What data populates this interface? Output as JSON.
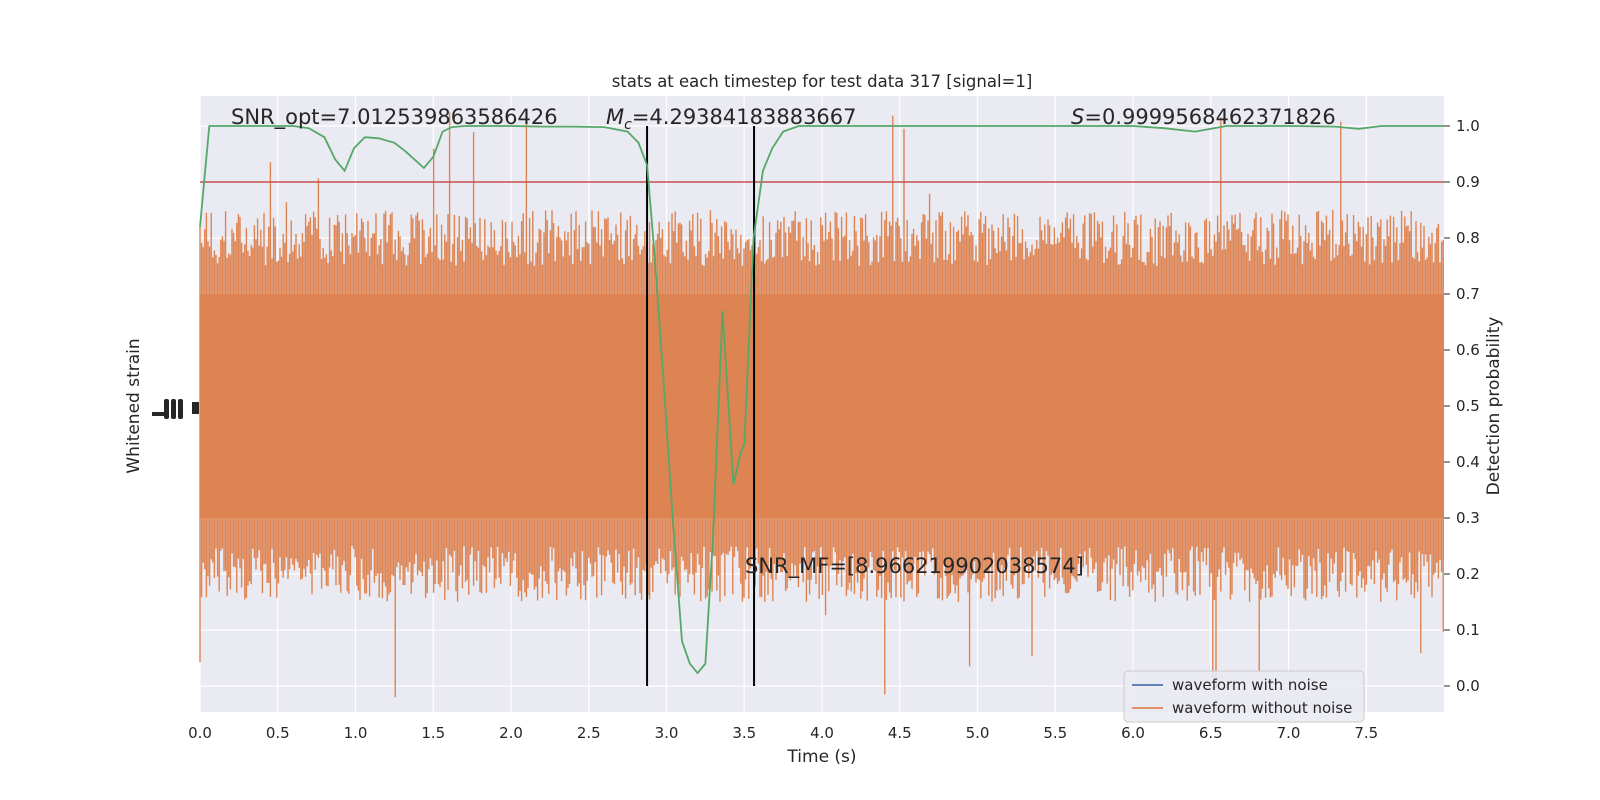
{
  "chart_data": {
    "type": "line",
    "title": "stats at each timestep for test data 317 [signal=1]",
    "xlabel": "Time (s)",
    "ylabel_left": "Whitened strain",
    "ylabel_right": "Detection probability",
    "xlim": [
      0.0,
      8.0
    ],
    "ylim_right": [
      -0.05,
      1.05
    ],
    "x_ticks": [
      "0.0",
      "0.5",
      "1.0",
      "1.5",
      "2.0",
      "2.5",
      "3.0",
      "3.5",
      "4.0",
      "4.5",
      "5.0",
      "5.5",
      "6.0",
      "6.5",
      "7.0",
      "7.5"
    ],
    "y_right_ticks": [
      "0.0",
      "0.1",
      "0.2",
      "0.3",
      "0.4",
      "0.5",
      "0.6",
      "0.7",
      "0.8",
      "0.9",
      "1.0"
    ],
    "grid": true,
    "legend": {
      "placement": "lower-right",
      "entries": [
        {
          "label": "waveform with noise",
          "color": "#4c72b0"
        },
        {
          "label": "waveform without noise",
          "color": "#dd8452"
        }
      ]
    },
    "annotations": {
      "snr_opt": "SNR_opt=7.012539863586426",
      "mc_symbol": "M",
      "mc_sub": "c",
      "mc_value": "=4.29384183883667",
      "s_symbol": "S",
      "s_value": "=0.9999568462371826",
      "snr_mf": "SNR_MF=[8.966219902038574]"
    },
    "threshold": {
      "value": 0.9,
      "color": "#c44e52"
    },
    "vlines": [
      2.875,
      3.563
    ],
    "strain_band": {
      "color": "#dd8452",
      "core_low": 0.3,
      "core_high": 0.7,
      "bulk_low": 0.22,
      "bulk_high": 0.78
    },
    "detection_probability": {
      "color": "#55a868",
      "x": [
        0.0,
        0.06,
        0.12,
        0.2,
        0.3,
        0.4,
        0.5,
        0.6,
        0.7,
        0.8,
        0.87,
        0.93,
        0.99,
        1.06,
        1.15,
        1.25,
        1.32,
        1.38,
        1.44,
        1.5,
        1.56,
        1.62,
        1.7,
        1.8,
        2.0,
        2.2,
        2.4,
        2.6,
        2.75,
        2.82,
        2.875,
        2.92,
        2.98,
        3.04,
        3.1,
        3.15,
        3.2,
        3.25,
        3.3,
        3.36,
        3.43,
        3.48,
        3.5,
        3.56,
        3.62,
        3.68,
        3.75,
        3.85,
        4.0,
        4.3,
        4.6,
        5.0,
        5.5,
        6.0,
        6.2,
        6.4,
        6.6,
        7.0,
        7.3,
        7.45,
        7.6,
        8.0
      ],
      "y": [
        0.82,
        1.0,
        1.0,
        1.0,
        1.0,
        1.0,
        1.0,
        1.0,
        0.996,
        0.98,
        0.94,
        0.92,
        0.96,
        0.98,
        0.978,
        0.97,
        0.955,
        0.94,
        0.925,
        0.945,
        0.99,
        0.998,
        1.0,
        1.0,
        1.0,
        0.999,
        0.999,
        0.998,
        0.99,
        0.97,
        0.93,
        0.78,
        0.55,
        0.3,
        0.08,
        0.04,
        0.023,
        0.04,
        0.27,
        0.67,
        0.36,
        0.42,
        0.43,
        0.8,
        0.92,
        0.96,
        0.99,
        1.0,
        1.0,
        1.0,
        1.0,
        1.0,
        1.0,
        1.0,
        0.996,
        0.99,
        1.0,
        1.0,
        0.999,
        0.995,
        1.0,
        1.0
      ]
    }
  }
}
